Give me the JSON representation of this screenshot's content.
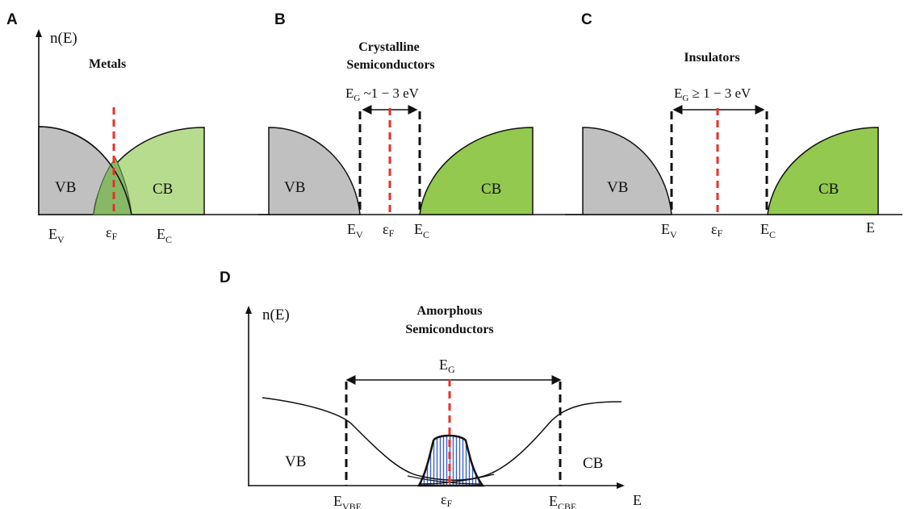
{
  "panels": {
    "A": {
      "letter": "A",
      "ylabel": "n(E)",
      "title": "Metals",
      "vb": "VB",
      "cb": "CB",
      "ev": {
        "main": "E",
        "sub": "V"
      },
      "ef": "ε",
      "ef_sub": "F",
      "ec": {
        "main": "E",
        "sub": "C"
      }
    },
    "B": {
      "letter": "B",
      "title_line1": "Crystalline",
      "title_line2": "Semiconductors",
      "gap_main": "E",
      "gap_sub": "G",
      "gap_rest": " ~1 − 3 eV",
      "vb": "VB",
      "cb": "CB",
      "ev": {
        "main": "E",
        "sub": "V"
      },
      "ef": "ε",
      "ef_sub": "F",
      "ec": {
        "main": "E",
        "sub": "C"
      }
    },
    "C": {
      "letter": "C",
      "title": "Insulators",
      "gap_main": "E",
      "gap_sub": "G",
      "gap_rest": " ≥ 1 − 3 eV",
      "vb": "VB",
      "cb": "CB",
      "ev": {
        "main": "E",
        "sub": "V"
      },
      "ef": "ε",
      "ef_sub": "F",
      "ec": {
        "main": "E",
        "sub": "C"
      },
      "xlabel": "E"
    },
    "D": {
      "letter": "D",
      "ylabel": "n(E)",
      "title_line1": "Amorphous",
      "title_line2": "Semiconductors",
      "gap_main": "E",
      "gap_sub": "G",
      "vb": "VB",
      "cb": "CB",
      "evbe": {
        "main": "E",
        "sub": "VBE"
      },
      "ef": "ε",
      "ef_sub": "F",
      "ecbe": {
        "main": "E",
        "sub": "CBE"
      },
      "xlabel": "E"
    }
  },
  "colors": {
    "vb_gray": "#c0c0c0",
    "cb_light_green": "#b8dc8e",
    "cb_green": "#92c94e",
    "overlap_green": "#80b060",
    "fermi_red": "#e8302a",
    "hatch_blue": "#3a63c8"
  }
}
